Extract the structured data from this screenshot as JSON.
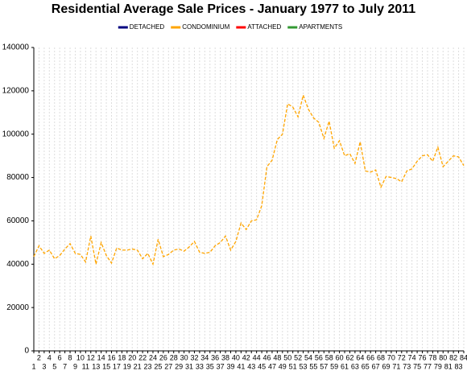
{
  "chart_data": {
    "type": "line",
    "title": "Residential Average Sale Prices  -  January 1977 to July 2011",
    "categories": [
      "1",
      "2",
      "3",
      "4",
      "5",
      "6",
      "7",
      "8",
      "9",
      "10",
      "11",
      "12",
      "13",
      "14",
      "15",
      "16",
      "17",
      "18",
      "19",
      "20",
      "21",
      "22",
      "23",
      "24",
      "25",
      "26",
      "27",
      "28",
      "29",
      "30",
      "31",
      "32",
      "33",
      "34",
      "35",
      "36",
      "37",
      "38",
      "39",
      "40",
      "41",
      "42",
      "43",
      "44",
      "45",
      "46",
      "47",
      "48",
      "49",
      "50",
      "51",
      "52",
      "53",
      "54",
      "55",
      "56",
      "57",
      "58",
      "59",
      "60",
      "61",
      "62",
      "63",
      "64",
      "65",
      "66",
      "67",
      "68",
      "69",
      "70",
      "71",
      "72",
      "73",
      "74",
      "75",
      "76",
      "77",
      "78",
      "79",
      "80",
      "81",
      "82",
      "83",
      "84"
    ],
    "series": [
      {
        "name": "DETACHED",
        "color": "#000080",
        "dash": false,
        "values": [
          null,
          null,
          null,
          null,
          null,
          null,
          null,
          null,
          null,
          null,
          null,
          null,
          null,
          null,
          null,
          null,
          null,
          null,
          null,
          null,
          null,
          null,
          null,
          null,
          null,
          null,
          null,
          null,
          null,
          null,
          null,
          null,
          null,
          null,
          null,
          null,
          null,
          null,
          null,
          null,
          null,
          null,
          null,
          null,
          null,
          null,
          null,
          null,
          null,
          null,
          null,
          null,
          null,
          null,
          null,
          null,
          null,
          null,
          null,
          null,
          null,
          null,
          null,
          null,
          null,
          null,
          null,
          null,
          null,
          null,
          null,
          null,
          null,
          null,
          null,
          null,
          null,
          null,
          null,
          null,
          null,
          null,
          null,
          null
        ]
      },
      {
        "name": "CONDOMINIUM",
        "color": "#ffa500",
        "dash": true,
        "values": [
          43500,
          48500,
          45000,
          46500,
          42500,
          44000,
          47000,
          49500,
          45000,
          44500,
          41000,
          53000,
          40000,
          50000,
          44000,
          40500,
          47500,
          46500,
          46500,
          47000,
          46500,
          42500,
          45000,
          40000,
          51500,
          43500,
          44500,
          46500,
          47000,
          46000,
          48000,
          50500,
          45500,
          45000,
          45500,
          48500,
          50000,
          53000,
          46500,
          50500,
          59000,
          56000,
          60000,
          60500,
          67000,
          85000,
          88000,
          97500,
          100000,
          114000,
          112500,
          108000,
          118000,
          111500,
          107500,
          105500,
          98000,
          106000,
          93500,
          97000,
          90000,
          91000,
          86500,
          96500,
          83000,
          82500,
          83500,
          75500,
          80500,
          80000,
          79500,
          78000,
          83000,
          84000,
          87500,
          90000,
          90500,
          87500,
          94000,
          85000,
          87500,
          90000,
          89500,
          85500
        ]
      },
      {
        "name": "ATTACHED",
        "color": "#ff0000",
        "dash": false,
        "values": [
          null,
          null,
          null,
          null,
          null,
          null,
          null,
          null,
          null,
          null,
          null,
          null,
          null,
          null,
          null,
          null,
          null,
          null,
          null,
          null,
          null,
          null,
          null,
          null,
          null,
          null,
          null,
          null,
          null,
          null,
          null,
          null,
          null,
          null,
          null,
          null,
          null,
          null,
          null,
          null,
          null,
          null,
          null,
          null,
          null,
          null,
          null,
          null,
          null,
          null,
          null,
          null,
          null,
          null,
          null,
          null,
          null,
          null,
          null,
          null,
          null,
          null,
          null,
          null,
          null,
          null,
          null,
          null,
          null,
          null,
          null,
          null,
          null,
          null,
          null,
          null,
          null,
          null,
          null,
          null,
          null,
          null,
          null,
          null
        ]
      },
      {
        "name": "APARTMENTS",
        "color": "#339933",
        "dash": false,
        "values": [
          null,
          null,
          null,
          null,
          null,
          null,
          null,
          null,
          null,
          null,
          null,
          null,
          null,
          null,
          null,
          null,
          null,
          null,
          null,
          null,
          null,
          null,
          null,
          null,
          null,
          null,
          null,
          null,
          null,
          null,
          null,
          null,
          null,
          null,
          null,
          null,
          null,
          null,
          null,
          null,
          null,
          null,
          null,
          null,
          null,
          null,
          null,
          null,
          null,
          null,
          null,
          null,
          null,
          null,
          null,
          null,
          null,
          null,
          null,
          null,
          null,
          null,
          null,
          null,
          null,
          null,
          null,
          null,
          null,
          null,
          null,
          null,
          null,
          null,
          null,
          null,
          null,
          null,
          null,
          null,
          null,
          null,
          null,
          null
        ]
      }
    ],
    "ylim": [
      0,
      140000
    ],
    "yticks": [
      0,
      20000,
      40000,
      60000,
      80000,
      100000,
      120000,
      140000
    ],
    "xgrid": true,
    "legend": "top"
  }
}
